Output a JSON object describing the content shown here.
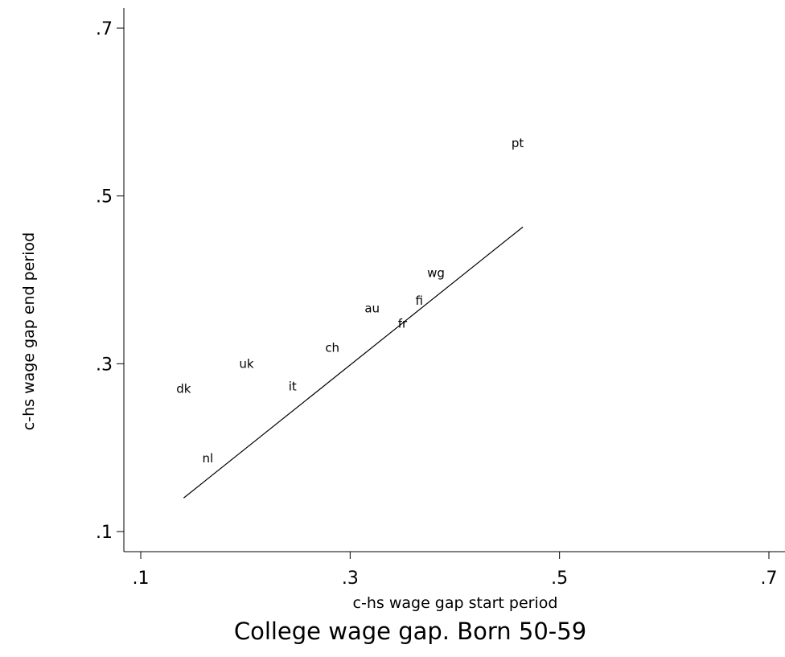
{
  "chart_data": {
    "type": "scatter",
    "title": "College wage gap. Born 50-59",
    "xlabel": "c-hs wage gap start period",
    "ylabel": "c-hs wage gap end period",
    "xlim": [
      0.1,
      0.7
    ],
    "ylim": [
      0.1,
      0.7
    ],
    "xticks": [
      0.1,
      0.3,
      0.5,
      0.7
    ],
    "yticks": [
      0.1,
      0.3,
      0.5,
      0.7
    ],
    "xtick_labels": [
      ".1",
      ".3",
      ".5",
      ".7"
    ],
    "ytick_labels": [
      ".1",
      ".3",
      ".5",
      ".7"
    ],
    "grid": false,
    "legend": "none",
    "points": [
      {
        "label": "dk",
        "x": 0.141,
        "y": 0.27
      },
      {
        "label": "nl",
        "x": 0.164,
        "y": 0.187
      },
      {
        "label": "uk",
        "x": 0.201,
        "y": 0.3
      },
      {
        "label": "it",
        "x": 0.245,
        "y": 0.273
      },
      {
        "label": "ch",
        "x": 0.283,
        "y": 0.319
      },
      {
        "label": "au",
        "x": 0.321,
        "y": 0.366
      },
      {
        "label": "fr",
        "x": 0.35,
        "y": 0.348
      },
      {
        "label": "fi",
        "x": 0.366,
        "y": 0.375
      },
      {
        "label": "wg",
        "x": 0.382,
        "y": 0.408
      },
      {
        "label": "pt",
        "x": 0.46,
        "y": 0.563
      }
    ],
    "fit_line": {
      "x": [
        0.141,
        0.465
      ],
      "y": [
        0.14,
        0.463
      ]
    }
  }
}
